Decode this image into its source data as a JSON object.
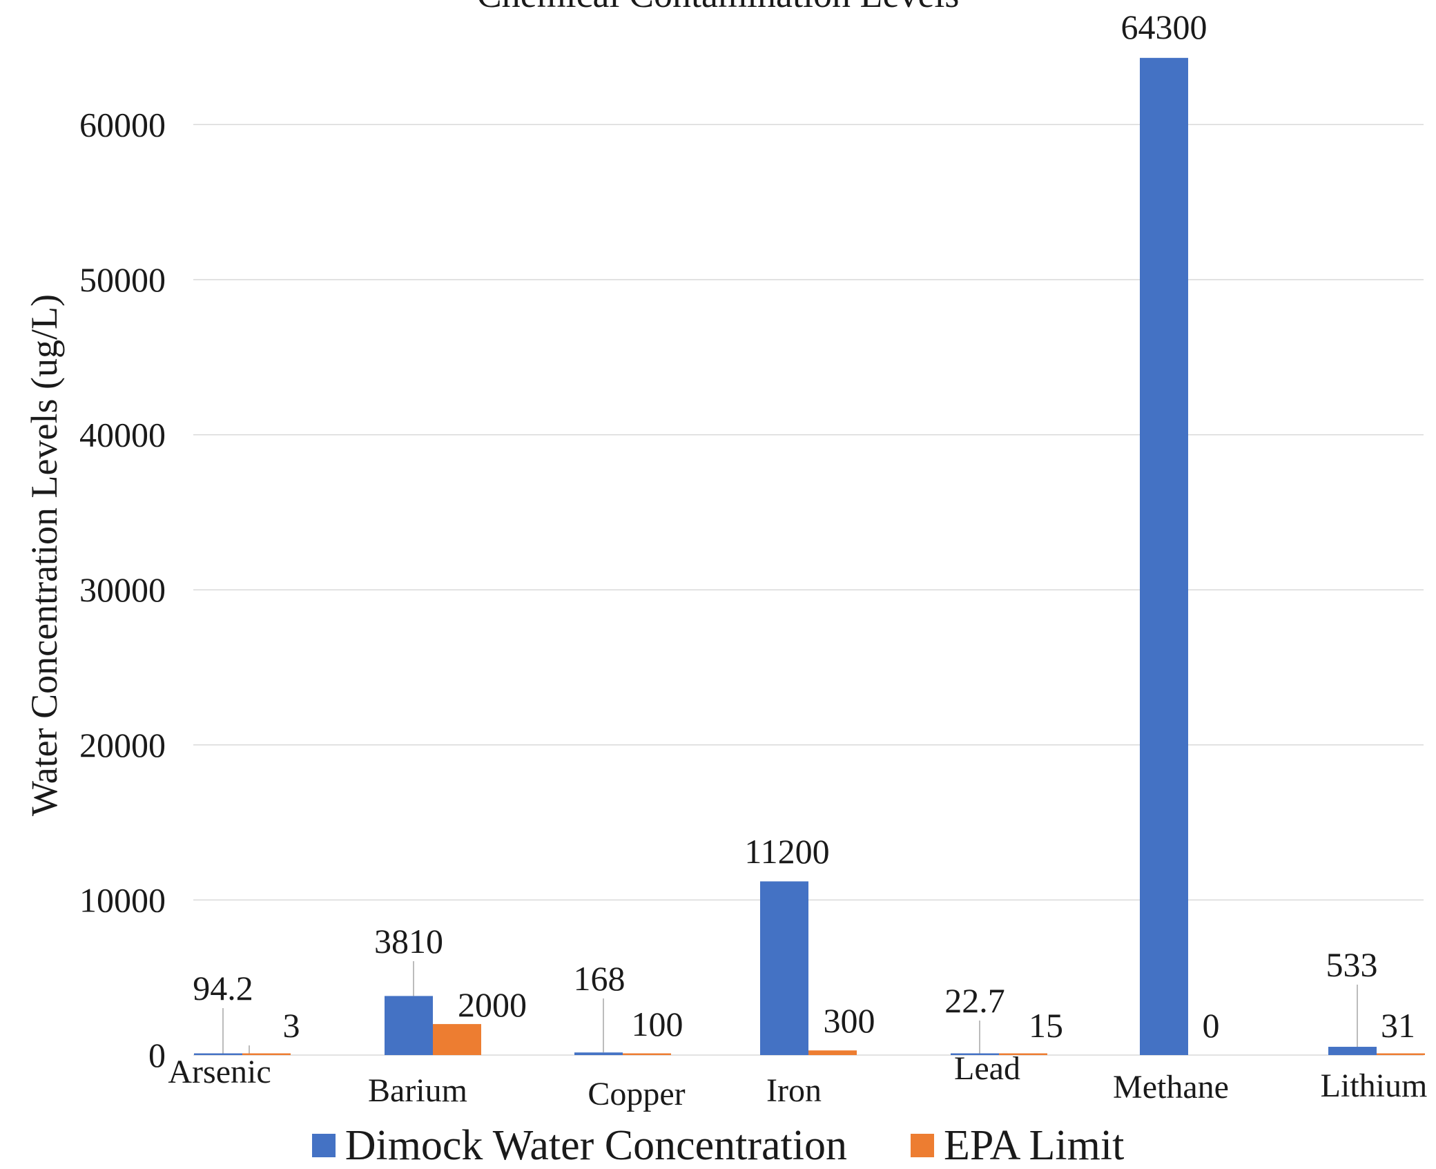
{
  "chart_data": {
    "type": "bar",
    "title": "Chemical Contamination Levels",
    "xlabel": "",
    "ylabel": "Water Concentration Levels (ug/L)",
    "ylim": [
      0,
      64300
    ],
    "yticks": [
      0,
      10000,
      20000,
      30000,
      40000,
      50000,
      60000
    ],
    "grid": true,
    "legend_position": "bottom",
    "categories": [
      "Arsenic",
      "Barium",
      "Copper",
      "Iron",
      "Lead",
      "Methane",
      "Lithium"
    ],
    "series": [
      {
        "name": "Dimock Water Concentration",
        "color": "#4472C4",
        "values": [
          94.2,
          3810,
          168,
          11200,
          22.7,
          64300,
          533
        ],
        "labels": [
          "94.2",
          "3810",
          "168",
          "11200",
          "22.7",
          "64300",
          "533"
        ]
      },
      {
        "name": "EPA Limit",
        "color": "#ED7D31",
        "values": [
          3,
          2000,
          100,
          300,
          15,
          0,
          31
        ],
        "labels": [
          "3",
          "2000",
          "100",
          "300",
          "15",
          "0",
          "31"
        ]
      }
    ]
  }
}
